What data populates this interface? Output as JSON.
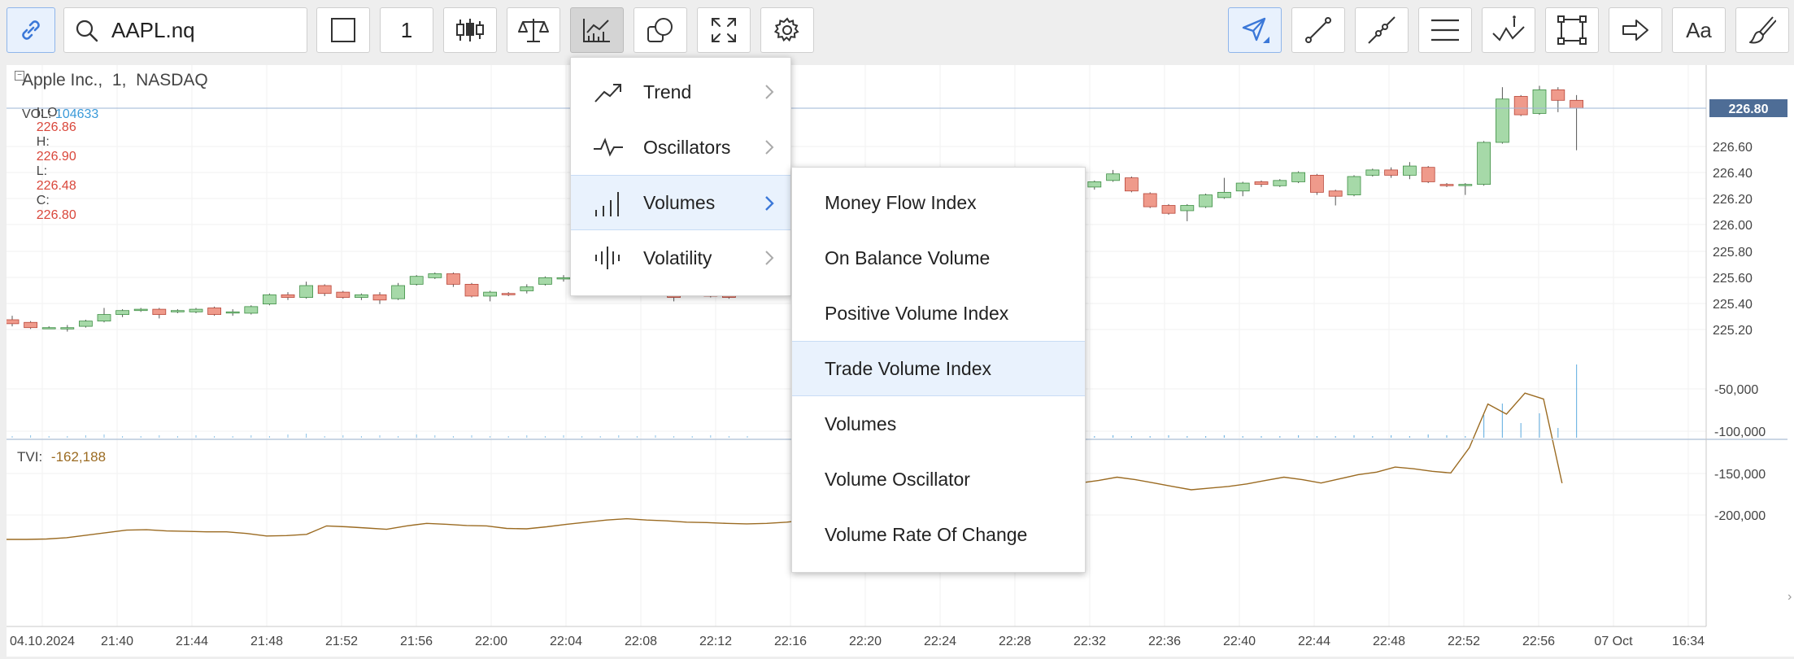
{
  "search": {
    "value": "AAPL.nq",
    "icon": "search-icon"
  },
  "toolbar": {
    "interval": "1",
    "left_icons": [
      "link-icon",
      "search-icon",
      "square-icon",
      "candlestick-icon",
      "scales-icon",
      "indicators-icon",
      "shapes-icon",
      "fullscreen-icon",
      "gear-icon"
    ],
    "right_icons": [
      "cursor-icon",
      "line-tool-icon",
      "polyline-tool-icon",
      "fibonacci-icon",
      "annotation-icon",
      "rectangle-tool-icon",
      "arrow-tool-icon",
      "text-tool-icon",
      "brush-icon"
    ],
    "right_text_label": "Aa",
    "active_color": "#3b78d8"
  },
  "chart": {
    "title": "Apple Inc.,  1,  NASDAQ",
    "ohlc": {
      "prefix": "I: O:",
      "o": "226.86",
      "h_label": "H:",
      "h": "226.90",
      "l_label": "L:",
      "l": "226.48",
      "c_label": "C:",
      "c": "226.80"
    },
    "vol_label": "VOL:",
    "vol_value": "104633",
    "last_price": "226.80",
    "price_ticks": [
      "226.60",
      "226.40",
      "226.20",
      "226.00",
      "225.80",
      "225.60",
      "225.40",
      "225.20"
    ],
    "tvi_label": "TVI:",
    "tvi_value": "-162,188",
    "tvi_ticks": [
      "-50,000",
      "-100,000",
      "-150,000",
      "-200,000"
    ],
    "time_ticks": [
      "04.10.2024",
      "21:40",
      "21:44",
      "21:48",
      "21:52",
      "21:56",
      "22:00",
      "22:04",
      "22:08",
      "22:12",
      "22:16",
      "22:20",
      "22:24",
      "22:28",
      "22:32",
      "22:36",
      "22:40",
      "22:44",
      "22:48",
      "22:52",
      "22:56",
      "07 Oct",
      "16:34"
    ],
    "up_color": "#a6d9a8",
    "down_color": "#ef9a8b",
    "price_color": "#d9463a",
    "vol_color": "#3a9ad9",
    "tvi_color": "#9b6b22"
  },
  "indicator_menu": {
    "items": [
      {
        "label": "Trend",
        "icon": "trend-icon"
      },
      {
        "label": "Oscillators",
        "icon": "oscillator-icon"
      },
      {
        "label": "Volumes",
        "icon": "volume-bars-icon"
      },
      {
        "label": "Volatility",
        "icon": "volatility-icon"
      }
    ],
    "highlighted": "Volumes"
  },
  "volumes_submenu": {
    "items": [
      "Money Flow Index",
      "On Balance Volume",
      "Positive Volume Index",
      "Trade Volume Index",
      "Volumes",
      "Volume Oscillator",
      "Volume Rate Of Change"
    ],
    "highlighted": "Trade Volume Index"
  }
}
